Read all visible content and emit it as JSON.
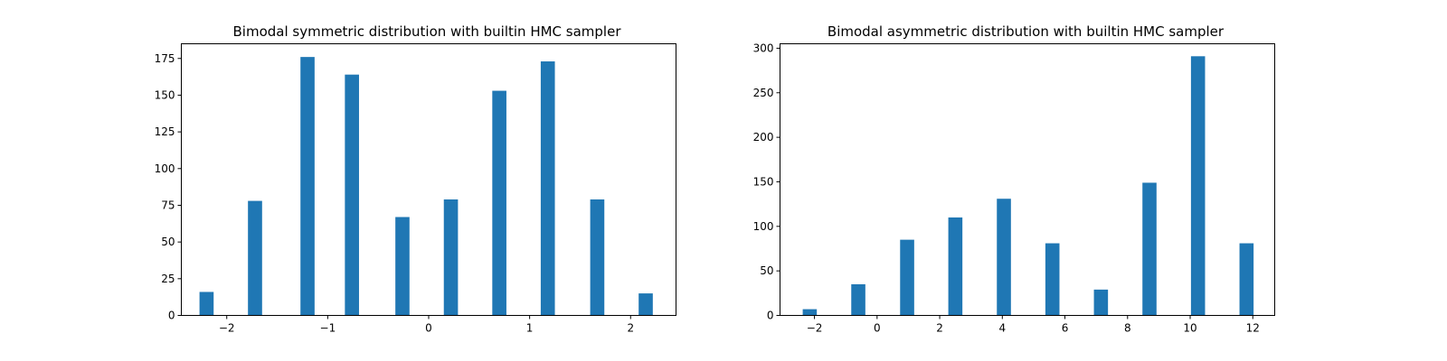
{
  "chart_data": [
    {
      "type": "bar",
      "title": "Bimodal symmetric distribution with builtin HMC sampler",
      "xlabel": "",
      "ylabel": "",
      "xlim": [
        -2.45,
        2.45
      ],
      "ylim": [
        0,
        185
      ],
      "xticks": [
        -2,
        -1,
        0,
        1,
        2
      ],
      "xtick_labels": [
        "−2",
        "−1",
        "0",
        "1",
        "2"
      ],
      "yticks": [
        0,
        25,
        50,
        75,
        100,
        125,
        150,
        175
      ],
      "ytick_labels": [
        "0",
        "25",
        "50",
        "75",
        "100",
        "125",
        "150",
        "175"
      ],
      "bar_color": "#1f77b4",
      "bar_width": 0.14,
      "x": [
        -2.2,
        -1.72,
        -1.2,
        -0.76,
        -0.26,
        0.22,
        0.7,
        1.18,
        1.67,
        2.15
      ],
      "values": [
        16,
        78,
        176,
        164,
        67,
        79,
        153,
        173,
        79,
        15
      ],
      "grid": false
    },
    {
      "type": "bar",
      "title": "Bimodal asymmetric distribution with builtin HMC sampler",
      "xlabel": "",
      "ylabel": "",
      "xlim": [
        -3.1,
        12.7
      ],
      "ylim": [
        0,
        305
      ],
      "xticks": [
        -2,
        0,
        2,
        4,
        6,
        8,
        10,
        12
      ],
      "xtick_labels": [
        "−2",
        "0",
        "2",
        "4",
        "6",
        "8",
        "10",
        "12"
      ],
      "yticks": [
        0,
        50,
        100,
        150,
        200,
        250,
        300
      ],
      "ytick_labels": [
        "0",
        "50",
        "100",
        "150",
        "200",
        "250",
        "300"
      ],
      "bar_color": "#1f77b4",
      "bar_width": 0.45,
      "x": [
        -2.15,
        -0.6,
        0.96,
        2.5,
        4.05,
        5.6,
        7.15,
        8.7,
        10.25,
        11.8
      ],
      "values": [
        7,
        35,
        85,
        110,
        131,
        81,
        29,
        149,
        291,
        81
      ],
      "grid": false
    }
  ]
}
